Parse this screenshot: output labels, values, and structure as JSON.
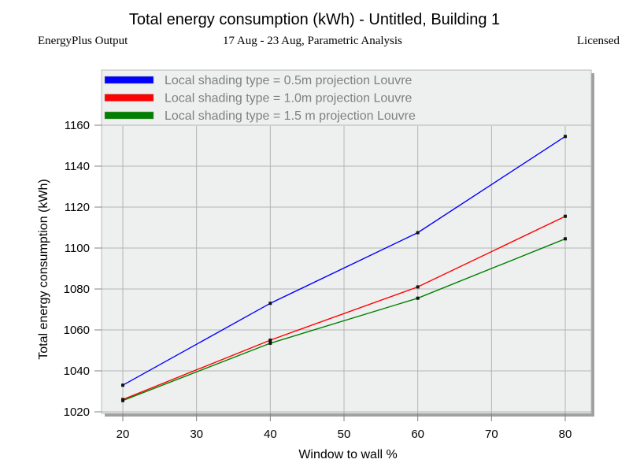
{
  "header": {
    "title": "Total energy consumption (kWh) - Untitled, Building 1",
    "left_label": "EnergyPlus Output",
    "center_label": "17 Aug - 23 Aug, Parametric Analysis",
    "right_label": "Licensed"
  },
  "chart_data": {
    "type": "line",
    "title": "Total energy consumption (kWh) - Untitled, Building 1",
    "xlabel": "Window to wall %",
    "ylabel": "Total energy consumption (kWh)",
    "xlim": [
      17,
      83
    ],
    "ylim": [
      1020,
      1160
    ],
    "xticks": [
      20,
      30,
      40,
      50,
      60,
      70,
      80
    ],
    "yticks": [
      1020,
      1040,
      1060,
      1080,
      1100,
      1120,
      1140,
      1160
    ],
    "grid": true,
    "legend_position": "top",
    "x": [
      20,
      40,
      60,
      80
    ],
    "series": [
      {
        "name": "Local shading type = 0.5m projection Louvre",
        "color": "#0000ff",
        "values": [
          1033,
          1073,
          1107.5,
          1154.5
        ]
      },
      {
        "name": "Local shading type = 1.0m projection Louvre",
        "color": "#ff0000",
        "values": [
          1026,
          1055,
          1081,
          1115.5
        ]
      },
      {
        "name": "Local shading type = 1.5 m projection Louvre",
        "color": "#008000",
        "values": [
          1025.5,
          1053.5,
          1075.5,
          1104.5
        ]
      }
    ]
  }
}
